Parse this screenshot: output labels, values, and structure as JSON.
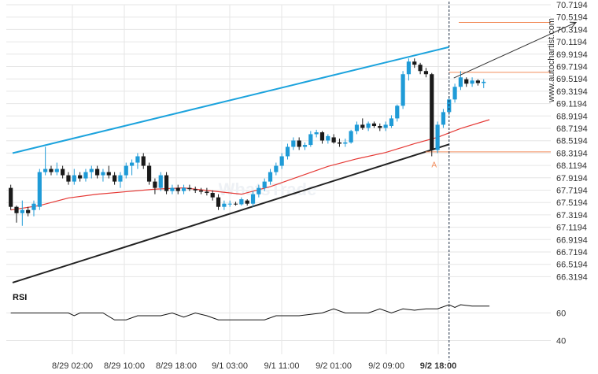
{
  "chart_data": {
    "type": "candlestick",
    "watermark": "WhatsTrade",
    "source": "www.autochartist.com",
    "x_tick_labels": [
      "8/29 02:00",
      "8/29 10:00",
      "8/29 18:00",
      "9/1 03:00",
      "9/1 11:00",
      "9/2 01:00",
      "9/2 09:00",
      "9/2 18:00"
    ],
    "y_tick_labels": [
      "70.7194",
      "70.5194",
      "70.3194",
      "70.1194",
      "69.9194",
      "69.7194",
      "69.5194",
      "69.3194",
      "69.1194",
      "68.9194",
      "68.7194",
      "68.5194",
      "68.3194",
      "68.1194",
      "67.9194",
      "67.7194",
      "67.5194",
      "67.3194",
      "67.1194",
      "66.9194",
      "66.7194",
      "66.5194",
      "66.3194"
    ],
    "ylim": [
      66.2,
      70.8
    ],
    "n_slots": 84,
    "candles": [
      [
        67.9,
        67.95,
        67.55,
        67.6
      ],
      [
        67.6,
        67.62,
        67.35,
        67.5
      ],
      [
        67.5,
        67.7,
        67.3,
        67.55
      ],
      [
        67.55,
        67.6,
        67.45,
        67.5
      ],
      [
        67.55,
        67.7,
        67.45,
        67.65
      ],
      [
        67.6,
        68.2,
        67.55,
        68.15
      ],
      [
        68.15,
        68.55,
        68.1,
        68.2
      ],
      [
        68.2,
        68.25,
        68.1,
        68.15
      ],
      [
        68.15,
        68.3,
        68.1,
        68.2
      ],
      [
        68.2,
        68.25,
        68.05,
        68.1
      ],
      [
        68.1,
        68.15,
        67.95,
        68.0
      ],
      [
        68.0,
        68.2,
        67.95,
        68.1
      ],
      [
        68.1,
        68.15,
        68.0,
        68.05
      ],
      [
        68.05,
        68.2,
        68.0,
        68.15
      ],
      [
        68.15,
        68.25,
        68.05,
        68.2
      ],
      [
        68.2,
        68.25,
        68.05,
        68.1
      ],
      [
        68.1,
        68.2,
        68.0,
        68.15
      ],
      [
        68.15,
        68.25,
        68.05,
        68.1
      ],
      [
        68.1,
        68.15,
        67.95,
        68.0
      ],
      [
        68.0,
        68.15,
        67.9,
        68.1
      ],
      [
        68.1,
        68.3,
        68.05,
        68.25
      ],
      [
        68.25,
        68.35,
        68.1,
        68.3
      ],
      [
        68.3,
        68.45,
        68.2,
        68.4
      ],
      [
        68.4,
        68.45,
        68.2,
        68.25
      ],
      [
        68.25,
        68.3,
        67.95,
        68.0
      ],
      [
        68.0,
        68.05,
        67.8,
        67.9
      ],
      [
        67.9,
        68.15,
        67.85,
        68.1
      ],
      [
        68.1,
        68.15,
        67.8,
        67.85
      ],
      [
        67.85,
        67.95,
        67.8,
        67.9
      ],
      [
        67.9,
        67.95,
        67.8,
        67.85
      ],
      [
        67.85,
        67.95,
        67.8,
        67.9
      ],
      [
        67.9,
        67.95,
        67.85,
        67.88
      ],
      [
        67.88,
        67.92,
        67.82,
        67.86
      ],
      [
        67.86,
        67.9,
        67.8,
        67.84
      ],
      [
        67.84,
        67.9,
        67.78,
        67.82
      ],
      [
        67.82,
        67.86,
        67.7,
        67.75
      ],
      [
        67.75,
        67.8,
        67.55,
        67.6
      ],
      [
        67.6,
        67.7,
        67.55,
        67.65
      ],
      [
        67.65,
        67.7,
        67.6,
        67.65
      ],
      [
        67.65,
        67.68,
        67.62,
        67.64
      ],
      [
        67.64,
        67.75,
        67.62,
        67.72
      ],
      [
        67.7,
        67.72,
        67.62,
        67.65
      ],
      [
        67.65,
        67.85,
        67.6,
        67.8
      ],
      [
        67.8,
        67.95,
        67.75,
        67.9
      ],
      [
        67.9,
        68.05,
        67.85,
        68.0
      ],
      [
        68.0,
        68.2,
        67.95,
        68.15
      ],
      [
        68.15,
        68.3,
        68.1,
        68.25
      ],
      [
        68.25,
        68.45,
        68.2,
        68.4
      ],
      [
        68.4,
        68.6,
        68.35,
        68.55
      ],
      [
        68.55,
        68.7,
        68.5,
        68.65
      ],
      [
        68.65,
        68.7,
        68.5,
        68.55
      ],
      [
        68.55,
        68.62,
        68.5,
        68.58
      ],
      [
        68.58,
        68.8,
        68.55,
        68.75
      ],
      [
        68.75,
        68.82,
        68.7,
        68.78
      ],
      [
        68.78,
        68.8,
        68.6,
        68.65
      ],
      [
        68.65,
        68.75,
        68.6,
        68.72
      ],
      [
        68.7,
        68.75,
        68.6,
        68.62
      ],
      [
        68.62,
        68.68,
        68.55,
        68.6
      ],
      [
        68.6,
        68.68,
        68.55,
        68.62
      ],
      [
        68.62,
        68.82,
        68.6,
        68.8
      ],
      [
        68.8,
        68.95,
        68.75,
        68.9
      ],
      [
        68.9,
        69.0,
        68.82,
        68.85
      ],
      [
        68.85,
        68.95,
        68.8,
        68.92
      ],
      [
        68.92,
        68.95,
        68.85,
        68.88
      ],
      [
        68.88,
        68.92,
        68.8,
        68.85
      ],
      [
        68.85,
        68.95,
        68.8,
        68.9
      ],
      [
        68.88,
        69.05,
        68.85,
        69.0
      ],
      [
        69.0,
        69.22,
        68.95,
        69.2
      ],
      [
        69.2,
        69.75,
        69.15,
        69.7
      ],
      [
        69.7,
        69.95,
        69.6,
        69.9
      ],
      [
        69.9,
        69.95,
        69.8,
        69.85
      ],
      [
        69.85,
        69.88,
        69.7,
        69.75
      ],
      [
        69.75,
        69.8,
        69.65,
        69.7
      ],
      [
        69.7,
        69.72,
        68.4,
        68.5
      ],
      [
        68.5,
        68.95,
        68.45,
        68.9
      ],
      [
        68.9,
        69.15,
        68.85,
        69.1
      ],
      [
        69.1,
        69.35,
        69.05,
        69.3
      ],
      [
        69.3,
        69.55,
        69.25,
        69.5
      ],
      [
        69.5,
        69.75,
        69.45,
        69.65
      ],
      [
        69.62,
        69.65,
        69.5,
        69.55
      ],
      [
        69.55,
        69.65,
        69.5,
        69.6
      ],
      [
        69.6,
        69.62,
        69.52,
        69.56
      ],
      [
        69.56,
        69.62,
        69.48,
        69.58
      ]
    ],
    "moving_average": [
      [
        0,
        67.55
      ],
      [
        5,
        67.62
      ],
      [
        10,
        67.74
      ],
      [
        15,
        67.8
      ],
      [
        20,
        67.84
      ],
      [
        25,
        67.88
      ],
      [
        30,
        67.9
      ],
      [
        35,
        67.85
      ],
      [
        40,
        67.8
      ],
      [
        45,
        67.92
      ],
      [
        50,
        68.08
      ],
      [
        55,
        68.24
      ],
      [
        60,
        68.36
      ],
      [
        65,
        68.46
      ],
      [
        70,
        68.6
      ],
      [
        74,
        68.7
      ],
      [
        78,
        68.84
      ],
      [
        83,
        68.98
      ]
    ],
    "channel_upper": {
      "from": [
        0,
        68.45
      ],
      "to": [
        76,
        70.13
      ]
    },
    "channel_lower": {
      "from": [
        0,
        66.4
      ],
      "to": [
        76,
        68.59
      ]
    },
    "level_high": 69.73,
    "level_low": 68.47,
    "target_level": 70.52,
    "projection_arrow": {
      "from": [
        76,
        69.64
      ],
      "to": [
        98,
        70.52
      ]
    },
    "pattern_point_label": "A",
    "pattern_point": [
      73,
      68.4
    ],
    "current_marker_slot": 76,
    "rsi": {
      "label": "RSI",
      "ylim": [
        30,
        70
      ],
      "tick_labels": [
        "60",
        "40"
      ],
      "tick_values": [
        60,
        40
      ],
      "values": [
        [
          0,
          60
        ],
        [
          10,
          60
        ],
        [
          11,
          58
        ],
        [
          12,
          60
        ],
        [
          16,
          60
        ],
        [
          18,
          55
        ],
        [
          20,
          55
        ],
        [
          22,
          58
        ],
        [
          26,
          58
        ],
        [
          28,
          60
        ],
        [
          30,
          57
        ],
        [
          32,
          60
        ],
        [
          34,
          58
        ],
        [
          36,
          55
        ],
        [
          38,
          55
        ],
        [
          44,
          55
        ],
        [
          46,
          58
        ],
        [
          50,
          58
        ],
        [
          54,
          60
        ],
        [
          56,
          63
        ],
        [
          58,
          60
        ],
        [
          62,
          60
        ],
        [
          64,
          63
        ],
        [
          66,
          60
        ],
        [
          68,
          63
        ],
        [
          70,
          62
        ],
        [
          72,
          63
        ],
        [
          74,
          63
        ],
        [
          76,
          66
        ],
        [
          77,
          64
        ],
        [
          78,
          66
        ],
        [
          80,
          65
        ],
        [
          83,
          65
        ]
      ]
    },
    "colors": {
      "up_candle": "#1f9bd7",
      "down_candle": "#1a1a1a",
      "upper_channel": "#1ca3dd",
      "lower_channel": "#222222",
      "moving_average": "#e53935",
      "levels": "#f28c5b",
      "projection": "#333333",
      "rsi_line": "#111111",
      "current_marker": "#1a2a40"
    }
  }
}
